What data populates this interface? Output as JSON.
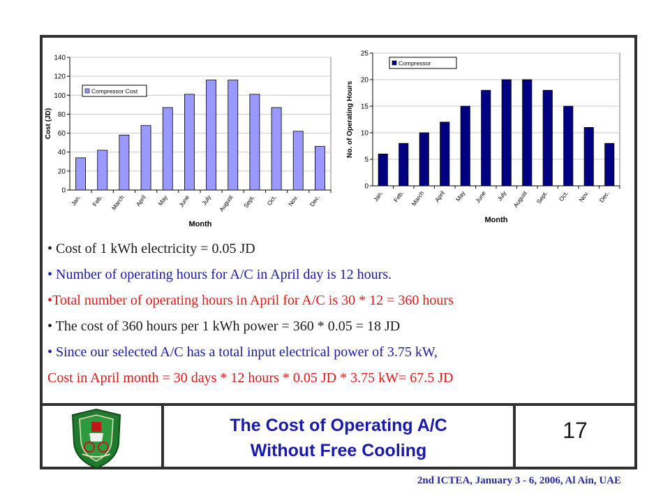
{
  "chart_data": [
    {
      "type": "bar",
      "categories": [
        "Jan.",
        "Feb.",
        "March",
        "April",
        "May",
        "June",
        "July",
        "August",
        "Sept.",
        "Oct.",
        "Nov.",
        "Dec."
      ],
      "series": [
        {
          "name": "Compressor Cost",
          "values": [
            34,
            42,
            58,
            68,
            87,
            101,
            116,
            116,
            101,
            87,
            62,
            46
          ]
        }
      ],
      "xlabel": "Month",
      "ylabel": "Cost (JD)",
      "ylim": [
        0,
        140
      ],
      "yticks": [
        "0",
        "20",
        "40",
        "60",
        "80",
        "100",
        "120",
        "140"
      ],
      "color": "#9999ff",
      "legend": "top-left",
      "grid": true
    },
    {
      "type": "bar",
      "categories": [
        "Jan.",
        "Feb.",
        "March",
        "April",
        "May",
        "June",
        "July",
        "August",
        "Sept.",
        "Oct.",
        "Nov.",
        "Dec."
      ],
      "series": [
        {
          "name": "Compressor",
          "values": [
            6,
            8,
            10,
            12,
            15,
            18,
            20,
            20,
            18,
            15,
            11,
            8
          ]
        }
      ],
      "xlabel": "Month",
      "ylabel": "No. of Operating Hours",
      "ylim": [
        0,
        25
      ],
      "yticks": [
        "0",
        "5",
        "10",
        "15",
        "20",
        "25"
      ],
      "color": "#000080",
      "legend": "top-left",
      "grid": true
    }
  ],
  "bullets": [
    {
      "text": "• Cost of 1 kWh electricity = 0.05 JD",
      "color": "black"
    },
    {
      "text": "• Number of operating hours for A/C in April day is 12 hours.",
      "color": "blue"
    },
    {
      "text": "•Total number of operating hours in April for A/C is 30 * 12 = 360 hours",
      "color": "red"
    },
    {
      "text": "• The cost of 360 hours per 1 kWh power = 360 * 0.05 = 18 JD",
      "color": "black"
    },
    {
      "text": "• Since our selected A/C has a total input electrical power of 3.75 kW,",
      "color": "blue"
    },
    {
      "text": "Cost in April month = 30 days * 12 hours * 0.05 JD * 3.75 kW= 67.5 JD",
      "color": "red"
    }
  ],
  "title": {
    "line1": "The Cost of Operating A/C",
    "line2": "Without Free Cooling"
  },
  "page_number": "17",
  "footer": "2nd ICTEA, January 3 - 6, 2006, Al Ain, UAE",
  "logo_icon": "university-crest-icon"
}
